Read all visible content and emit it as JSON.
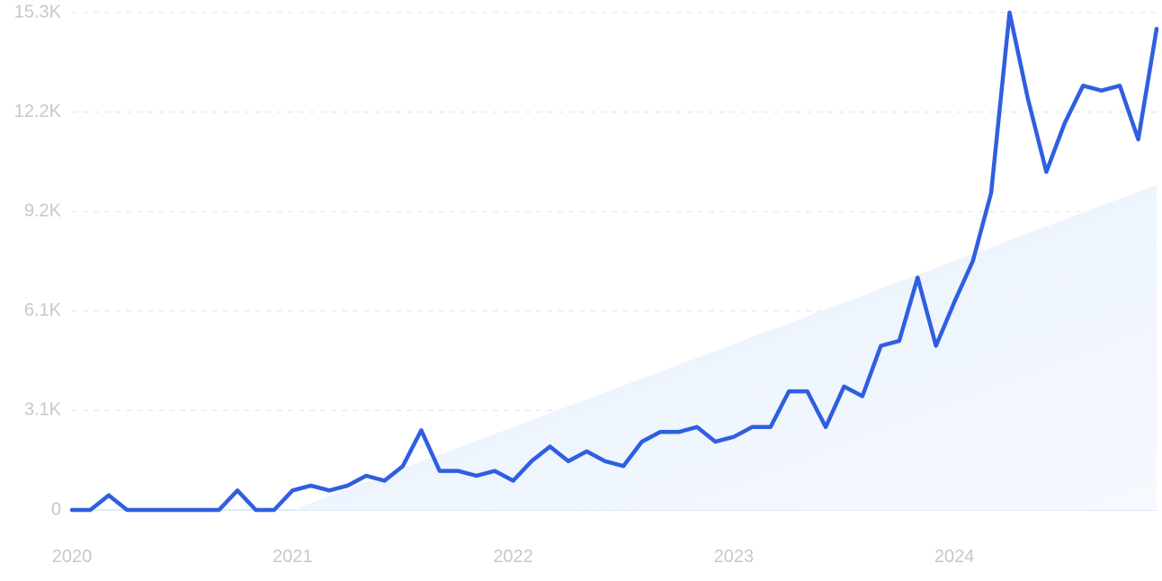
{
  "chart_data": {
    "type": "line",
    "title": "",
    "xlabel": "",
    "ylabel": "",
    "x_ticks": [
      "2020",
      "2021",
      "2022",
      "2023",
      "2024"
    ],
    "y_ticks": [
      "0",
      "3.1K",
      "6.1K",
      "9.2K",
      "12.2K",
      "15.3K"
    ],
    "ylim": [
      0,
      15300
    ],
    "x_range": [
      "2020-01",
      "2024-12"
    ],
    "grid": true,
    "colors": {
      "line": "#2f5fe0",
      "trend_fill": "#eaf2fd",
      "grid": "#dfe3ea",
      "tick_text": "#c5c8cf"
    },
    "series": [
      {
        "name": "",
        "x": [
          "2020-01",
          "2020-02",
          "2020-03",
          "2020-04",
          "2020-05",
          "2020-06",
          "2020-07",
          "2020-08",
          "2020-09",
          "2020-10",
          "2020-11",
          "2020-12",
          "2021-01",
          "2021-02",
          "2021-03",
          "2021-04",
          "2021-05",
          "2021-06",
          "2021-07",
          "2021-08",
          "2021-09",
          "2021-10",
          "2021-11",
          "2021-12",
          "2022-01",
          "2022-02",
          "2022-03",
          "2022-04",
          "2022-05",
          "2022-06",
          "2022-07",
          "2022-08",
          "2022-09",
          "2022-10",
          "2022-11",
          "2022-12",
          "2023-01",
          "2023-02",
          "2023-03",
          "2023-04",
          "2023-05",
          "2023-06",
          "2023-07",
          "2023-08",
          "2023-09",
          "2023-10",
          "2023-11",
          "2023-12",
          "2024-01",
          "2024-02",
          "2024-03",
          "2024-04",
          "2024-05",
          "2024-06",
          "2024-07",
          "2024-08",
          "2024-09",
          "2024-10",
          "2024-11",
          "2024-12"
        ],
        "values": [
          0,
          0,
          450,
          0,
          0,
          0,
          0,
          0,
          0,
          600,
          0,
          0,
          600,
          750,
          600,
          750,
          1050,
          900,
          1350,
          2450,
          1200,
          1200,
          1050,
          1200,
          900,
          1500,
          1950,
          1500,
          1800,
          1500,
          1350,
          2100,
          2400,
          2400,
          2550,
          2100,
          2250,
          2550,
          2550,
          3650,
          3650,
          2550,
          3800,
          3500,
          5050,
          5200,
          7150,
          5050,
          6400,
          7650,
          9750,
          15300,
          12650,
          10400,
          11900,
          13050,
          12900,
          13050,
          11400,
          14800
        ]
      },
      {
        "name": "",
        "type": "area",
        "x": [
          "2021-01",
          "2024-12"
        ],
        "values": [
          0,
          10000
        ]
      }
    ]
  }
}
